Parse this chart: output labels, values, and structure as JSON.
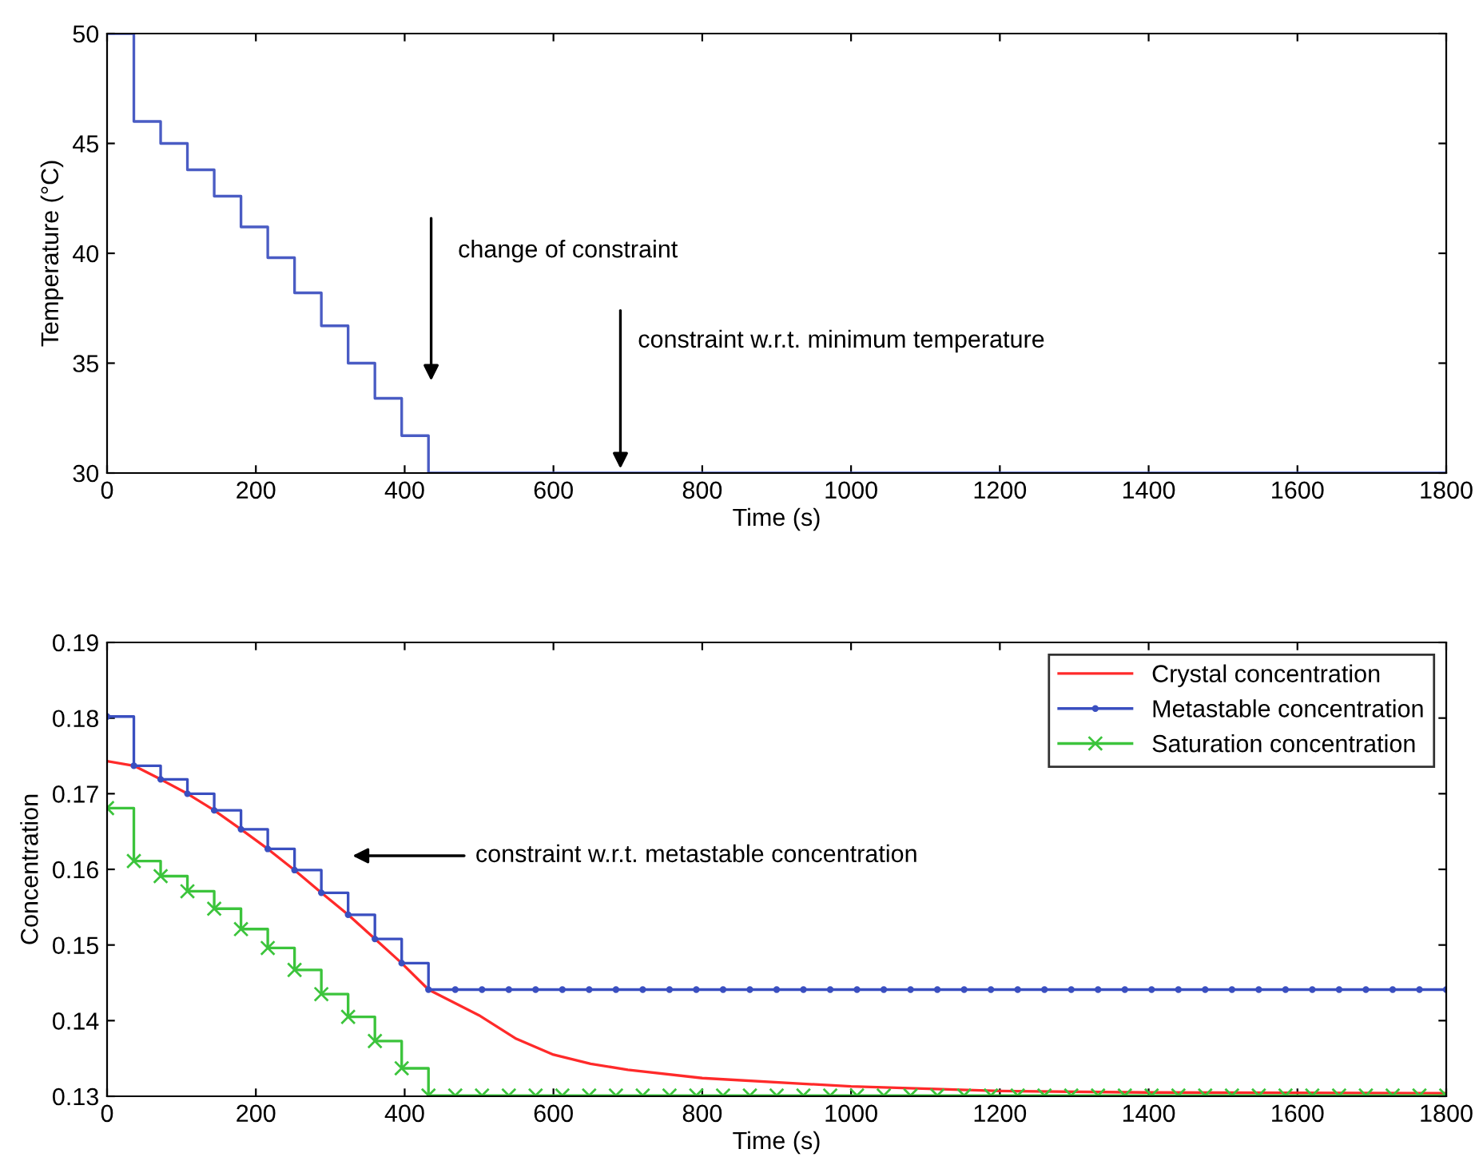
{
  "chart_data": [
    {
      "type": "step",
      "xlabel": "Time (s)",
      "ylabel": "Temperature (°C)",
      "xlim": [
        0,
        1800
      ],
      "ylim": [
        30,
        50
      ],
      "xticks": [
        0,
        200,
        400,
        600,
        800,
        1000,
        1200,
        1400,
        1600,
        1800
      ],
      "yticks": [
        30,
        35,
        40,
        45,
        50
      ],
      "grid": false,
      "legend": false,
      "series": [
        {
          "color": "#4a5cc4",
          "x": [
            0,
            36,
            72,
            108,
            144,
            180,
            216,
            252,
            288,
            324,
            360,
            396,
            432,
            1800
          ],
          "values": [
            50,
            46,
            45,
            43.8,
            42.6,
            41.2,
            39.8,
            38.2,
            36.7,
            35,
            33.4,
            31.7,
            30,
            30
          ]
        }
      ],
      "annotations": [
        "change of constraint",
        {
          "text": "constraint w.r.t. minimum temperature",
          "x": 690,
          "y": 30
        }
      ]
    },
    {
      "type": "line",
      "xlabel": "Time (s)",
      "ylabel": "Concentration",
      "xlim": [
        0,
        1800
      ],
      "ylim": [
        0.13,
        0.19
      ],
      "xticks": [
        0,
        200,
        400,
        600,
        800,
        1000,
        1200,
        1400,
        1600,
        1800
      ],
      "yticks": [
        0.13,
        0.14,
        0.15,
        0.16,
        0.17,
        0.18,
        0.19
      ],
      "grid": false,
      "legend": "top right",
      "series": [
        {
          "name": "Crystal concentration",
          "type": "line",
          "color": "#ff2a2a",
          "marker": "none",
          "x": [
            0,
            36,
            72,
            108,
            144,
            180,
            216,
            252,
            288,
            324,
            360,
            396,
            432,
            500,
            550,
            600,
            650,
            700,
            800,
            1000,
            1200,
            1400,
            1800
          ],
          "values": [
            0.1743,
            0.1737,
            0.1719,
            0.17,
            0.1678,
            0.1653,
            0.1627,
            0.1599,
            0.1569,
            0.154,
            0.1508,
            0.1476,
            0.1441,
            0.1407,
            0.1376,
            0.1355,
            0.1343,
            0.1335,
            0.1324,
            0.1313,
            0.1307,
            0.1305,
            0.1304
          ]
        },
        {
          "name": "Metastable concentration",
          "type": "step",
          "color": "#3a4fc0",
          "marker": "circle",
          "x": [
            0,
            36,
            72,
            108,
            144,
            180,
            216,
            252,
            288,
            324,
            360,
            396,
            432,
            468,
            504,
            540,
            576,
            612,
            648,
            684,
            720,
            756,
            792,
            828,
            864,
            900,
            936,
            972,
            1008,
            1044,
            1080,
            1116,
            1152,
            1188,
            1224,
            1260,
            1296,
            1332,
            1368,
            1404,
            1440,
            1476,
            1512,
            1548,
            1584,
            1620,
            1656,
            1692,
            1728,
            1764,
            1800
          ],
          "values": [
            0.1802,
            0.1737,
            0.1719,
            0.17,
            0.1678,
            0.1653,
            0.1627,
            0.1599,
            0.1569,
            0.154,
            0.1508,
            0.1476,
            0.1441,
            0.1441,
            0.1441,
            0.1441,
            0.1441,
            0.1441,
            0.1441,
            0.1441,
            0.1441,
            0.1441,
            0.1441,
            0.1441,
            0.1441,
            0.1441,
            0.1441,
            0.1441,
            0.1441,
            0.1441,
            0.1441,
            0.1441,
            0.1441,
            0.1441,
            0.1441,
            0.1441,
            0.1441,
            0.1441,
            0.1441,
            0.1441,
            0.1441,
            0.1441,
            0.1441,
            0.1441,
            0.1441,
            0.1441,
            0.1441,
            0.1441,
            0.1441,
            0.1441,
            0.1441
          ]
        },
        {
          "name": "Saturation concentration",
          "type": "step",
          "color": "#3cc43c",
          "marker": "cross",
          "x": [
            0,
            36,
            72,
            108,
            144,
            180,
            216,
            252,
            288,
            324,
            360,
            396,
            432,
            468,
            504,
            540,
            576,
            612,
            648,
            684,
            720,
            756,
            792,
            828,
            864,
            900,
            936,
            972,
            1008,
            1044,
            1080,
            1116,
            1152,
            1188,
            1224,
            1260,
            1296,
            1332,
            1368,
            1404,
            1440,
            1476,
            1512,
            1548,
            1584,
            1620,
            1656,
            1692,
            1728,
            1764,
            1800
          ],
          "values": [
            0.1681,
            0.1611,
            0.1591,
            0.1571,
            0.1548,
            0.1521,
            0.1496,
            0.1467,
            0.1435,
            0.1405,
            0.1373,
            0.1337,
            0.1301,
            0.1301,
            0.1301,
            0.1301,
            0.1301,
            0.1301,
            0.1301,
            0.1301,
            0.1301,
            0.1301,
            0.1301,
            0.1301,
            0.1301,
            0.1301,
            0.1301,
            0.1301,
            0.1301,
            0.1301,
            0.1301,
            0.1301,
            0.1301,
            0.1301,
            0.1301,
            0.1301,
            0.1301,
            0.1301,
            0.1301,
            0.1301,
            0.1301,
            0.1301,
            0.1301,
            0.1301,
            0.1301,
            0.1301,
            0.1301,
            0.1301,
            0.1301,
            0.1301,
            0.1301
          ]
        }
      ],
      "annotations": [
        "constraint w.r.t. metastable concentration"
      ]
    }
  ]
}
